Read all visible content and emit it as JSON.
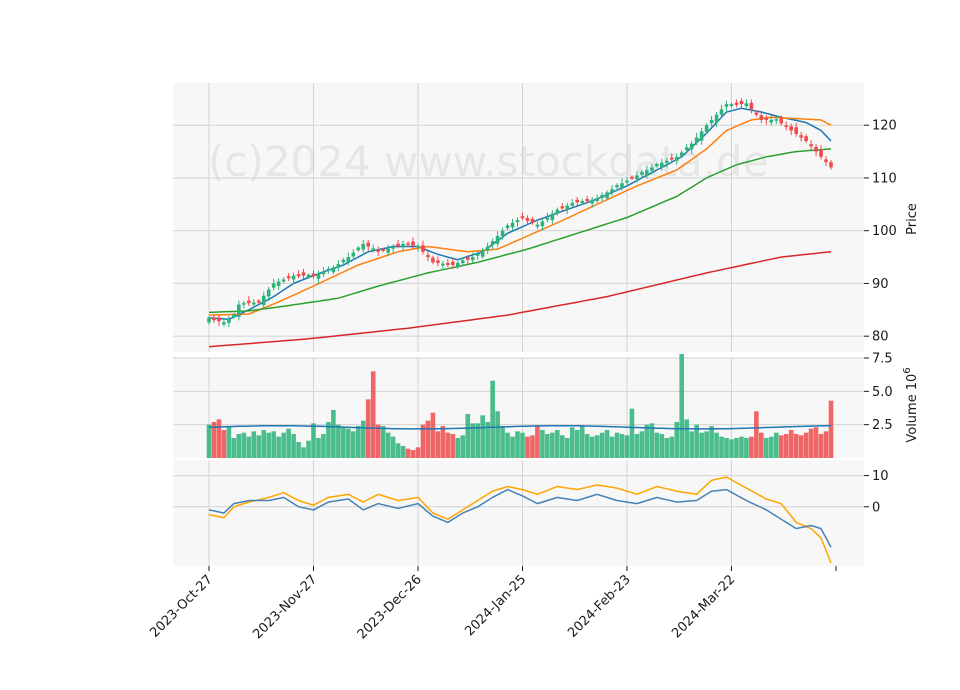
{
  "chart_data": {
    "type": "candlestick",
    "watermark": "(c)2024 www.stockdata.de",
    "x_tick_labels": [
      "2023-Oct-27",
      "2023-Nov-27",
      "2023-Dec-26",
      "2024-Jan-25",
      "2024-Feb-23",
      "2024-Mar-22"
    ],
    "x_tick_index": [
      0,
      21,
      42,
      63,
      84,
      105
    ],
    "n_sessions": 126,
    "grid": true,
    "colors": {
      "up": "#2db37a",
      "down": "#ee4b4b",
      "ma_fast": "#1f77b4",
      "ma_mid": "#ff7f0e",
      "ma_slow": "#2ca02c",
      "ma_long": "#d62728",
      "vol_avg": "#1f77b4",
      "osc_1": "#ffa500",
      "osc_2": "#4682b4",
      "panel_bg": "#f7f7f7",
      "grid": "#d3d3d3"
    },
    "price_panel": {
      "ylabel": "Price",
      "ylim": [
        77,
        128
      ],
      "yticks": [
        80,
        90,
        100,
        110,
        120
      ],
      "close_anchors": [
        [
          0,
          83.5
        ],
        [
          3,
          82.5
        ],
        [
          5,
          84
        ],
        [
          6,
          86
        ],
        [
          10,
          86.5
        ],
        [
          13,
          90
        ],
        [
          17,
          91.5
        ],
        [
          21,
          91.5
        ],
        [
          25,
          93
        ],
        [
          28,
          95
        ],
        [
          31,
          97.5
        ],
        [
          34,
          96
        ],
        [
          39,
          97.5
        ],
        [
          42,
          97
        ],
        [
          45,
          94
        ],
        [
          49,
          93.5
        ],
        [
          53,
          95
        ],
        [
          56,
          97
        ],
        [
          60,
          101
        ],
        [
          63,
          102.5
        ],
        [
          66,
          101
        ],
        [
          70,
          104
        ],
        [
          74,
          105.5
        ],
        [
          78,
          106
        ],
        [
          82,
          108.5
        ],
        [
          86,
          110.5
        ],
        [
          90,
          112.5
        ],
        [
          94,
          114
        ],
        [
          97,
          116.5
        ],
        [
          100,
          120
        ],
        [
          104,
          124
        ],
        [
          108,
          124
        ],
        [
          111,
          121
        ],
        [
          114,
          121
        ],
        [
          117,
          119
        ],
        [
          120,
          117
        ],
        [
          122,
          115
        ],
        [
          125,
          112
        ]
      ],
      "moving_averages": [
        {
          "key": "ma_fast",
          "anchors": [
            [
              0,
              83.5
            ],
            [
              4,
              83.2
            ],
            [
              8,
              85
            ],
            [
              13,
              87.5
            ],
            [
              17,
              90
            ],
            [
              21,
              91.5
            ],
            [
              27,
              93.5
            ],
            [
              32,
              96
            ],
            [
              37,
              97
            ],
            [
              42,
              97
            ],
            [
              46,
              95.5
            ],
            [
              50,
              94.5
            ],
            [
              55,
              96
            ],
            [
              60,
              99.5
            ],
            [
              66,
              102
            ],
            [
              72,
              104
            ],
            [
              78,
              106
            ],
            [
              84,
              108.5
            ],
            [
              90,
              111.5
            ],
            [
              95,
              114
            ],
            [
              100,
              118.5
            ],
            [
              104,
              122.5
            ],
            [
              107,
              123.2
            ],
            [
              111,
              122.5
            ],
            [
              115,
              121.5
            ],
            [
              120,
              120.5
            ],
            [
              123,
              119
            ],
            [
              125,
              117
            ]
          ]
        },
        {
          "key": "ma_mid",
          "anchors": [
            [
              0,
              84
            ],
            [
              8,
              84.2
            ],
            [
              14,
              86.5
            ],
            [
              21,
              89.5
            ],
            [
              30,
              93.5
            ],
            [
              38,
              96
            ],
            [
              44,
              97
            ],
            [
              52,
              96
            ],
            [
              58,
              96.5
            ],
            [
              64,
              99
            ],
            [
              70,
              101.5
            ],
            [
              78,
              105
            ],
            [
              86,
              108.5
            ],
            [
              94,
              111.5
            ],
            [
              100,
              115.5
            ],
            [
              104,
              119
            ],
            [
              109,
              121
            ],
            [
              113,
              121.5
            ],
            [
              119,
              121.2
            ],
            [
              123,
              121
            ],
            [
              125,
              120
            ]
          ]
        },
        {
          "key": "ma_slow",
          "anchors": [
            [
              0,
              84.5
            ],
            [
              8,
              84.8
            ],
            [
              16,
              85.8
            ],
            [
              26,
              87.2
            ],
            [
              34,
              89.5
            ],
            [
              44,
              92
            ],
            [
              54,
              94
            ],
            [
              64,
              96.5
            ],
            [
              74,
              99.5
            ],
            [
              84,
              102.5
            ],
            [
              94,
              106.5
            ],
            [
              100,
              110
            ],
            [
              106,
              112.5
            ],
            [
              112,
              114
            ],
            [
              118,
              115
            ],
            [
              125,
              115.5
            ]
          ]
        },
        {
          "key": "ma_long",
          "anchors": [
            [
              0,
              78
            ],
            [
              20,
              79.5
            ],
            [
              40,
              81.5
            ],
            [
              60,
              84
            ],
            [
              80,
              87.5
            ],
            [
              100,
              92
            ],
            [
              115,
              95
            ],
            [
              125,
              96
            ]
          ]
        }
      ]
    },
    "volume_panel": {
      "ylabel": "Volume",
      "ylabel_exponent": "6",
      "ylim": [
        0,
        7.5
      ],
      "yticks": [
        2.5,
        5.0,
        7.5
      ],
      "ytick_labels": [
        "2.5",
        "5.0",
        "7.5"
      ],
      "average_level": 2.3,
      "values": [
        2.5,
        2.7,
        2.9,
        2.1,
        2.4,
        1.5,
        1.8,
        1.9,
        1.6,
        2.0,
        1.7,
        2.1,
        1.9,
        2.0,
        1.6,
        1.9,
        2.2,
        1.8,
        1.2,
        0.8,
        1.3,
        2.6,
        1.5,
        1.8,
        2.7,
        3.6,
        2.5,
        2.3,
        2.2,
        2.0,
        2.4,
        2.8,
        4.4,
        6.5,
        2.5,
        2.4,
        1.9,
        1.6,
        1.1,
        0.9,
        0.7,
        0.6,
        0.8,
        2.5,
        2.8,
        3.4,
        2.0,
        2.4,
        1.9,
        1.8,
        1.5,
        1.7,
        3.3,
        2.6,
        2.6,
        3.2,
        2.7,
        5.8,
        3.5,
        2.4,
        1.9,
        1.6,
        2.0,
        1.9,
        1.6,
        1.7,
        2.4,
        2.1,
        1.8,
        1.9,
        2.1,
        1.7,
        1.5,
        2.3,
        2.1,
        2.4,
        1.8,
        1.6,
        1.7,
        1.9,
        2.1,
        1.6,
        1.9,
        1.8,
        1.7,
        3.7,
        1.8,
        2.0,
        2.5,
        2.6,
        1.9,
        1.8,
        1.5,
        1.6,
        2.7,
        7.8,
        2.9,
        2.0,
        2.5,
        1.9,
        2.0,
        2.4,
        1.9,
        1.6,
        1.5,
        1.4,
        1.5,
        1.6,
        1.5,
        1.6,
        3.5,
        1.9,
        1.5,
        1.6,
        1.9,
        1.7,
        1.8,
        2.1,
        1.8,
        1.7,
        1.9,
        2.2,
        2.3,
        1.8,
        2.0,
        4.3
      ]
    },
    "oscillator_panel": {
      "ylim": [
        -19,
        15
      ],
      "yticks": [
        0,
        10
      ],
      "series": [
        {
          "key": "osc_1",
          "anchors": [
            [
              0,
              -2.5
            ],
            [
              3,
              -3.5
            ],
            [
              5,
              0
            ],
            [
              8,
              1.5
            ],
            [
              12,
              3
            ],
            [
              15,
              4.5
            ],
            [
              18,
              2
            ],
            [
              21,
              0.5
            ],
            [
              24,
              3
            ],
            [
              28,
              4
            ],
            [
              31,
              1.5
            ],
            [
              34,
              4
            ],
            [
              38,
              2
            ],
            [
              42,
              3
            ],
            [
              45,
              -2
            ],
            [
              48,
              -4
            ],
            [
              51,
              -1
            ],
            [
              54,
              2
            ],
            [
              57,
              5
            ],
            [
              60,
              6.5
            ],
            [
              63,
              5.5
            ],
            [
              66,
              4
            ],
            [
              70,
              6.5
            ],
            [
              74,
              5.5
            ],
            [
              78,
              7
            ],
            [
              82,
              6
            ],
            [
              86,
              4
            ],
            [
              90,
              6.5
            ],
            [
              94,
              5
            ],
            [
              98,
              4
            ],
            [
              101,
              8.5
            ],
            [
              104,
              9.5
            ],
            [
              108,
              6
            ],
            [
              112,
              2.5
            ],
            [
              115,
              1
            ],
            [
              118,
              -5
            ],
            [
              121,
              -7
            ],
            [
              123,
              -10
            ],
            [
              125,
              -18
            ]
          ]
        },
        {
          "key": "osc_2",
          "anchors": [
            [
              0,
              -1
            ],
            [
              3,
              -2
            ],
            [
              5,
              1
            ],
            [
              8,
              2
            ],
            [
              12,
              2
            ],
            [
              15,
              3
            ],
            [
              18,
              0
            ],
            [
              21,
              -1
            ],
            [
              24,
              1.5
            ],
            [
              28,
              2.5
            ],
            [
              31,
              -1
            ],
            [
              34,
              1
            ],
            [
              38,
              -0.5
            ],
            [
              42,
              1
            ],
            [
              45,
              -3
            ],
            [
              48,
              -5
            ],
            [
              51,
              -2
            ],
            [
              54,
              0
            ],
            [
              57,
              3
            ],
            [
              60,
              5.5
            ],
            [
              63,
              3.5
            ],
            [
              66,
              1
            ],
            [
              70,
              3
            ],
            [
              74,
              2
            ],
            [
              78,
              4
            ],
            [
              82,
              2
            ],
            [
              86,
              1
            ],
            [
              90,
              3
            ],
            [
              94,
              1.5
            ],
            [
              98,
              2
            ],
            [
              101,
              5
            ],
            [
              104,
              5.5
            ],
            [
              108,
              2
            ],
            [
              112,
              -1
            ],
            [
              115,
              -4
            ],
            [
              118,
              -7
            ],
            [
              121,
              -6
            ],
            [
              123,
              -7
            ],
            [
              125,
              -13
            ]
          ]
        }
      ]
    }
  }
}
